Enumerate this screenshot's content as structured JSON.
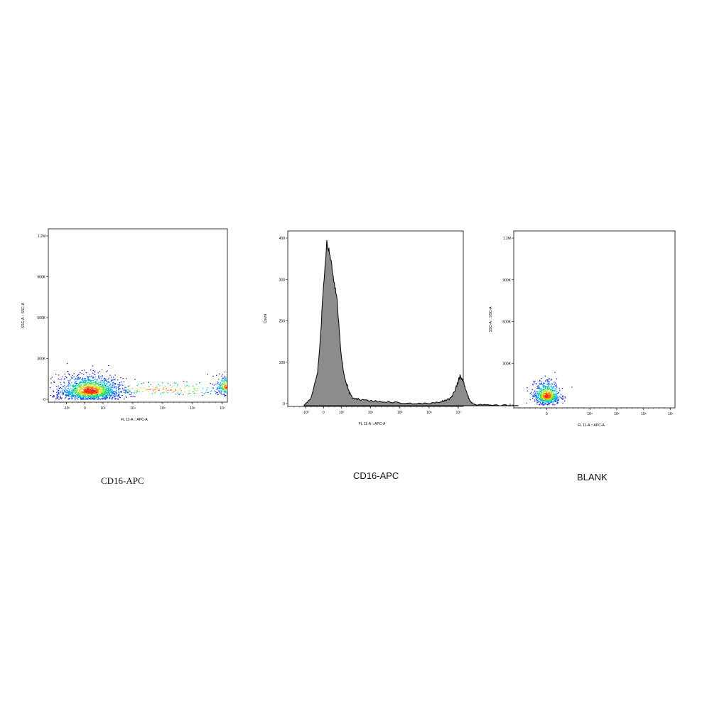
{
  "chart_data": [
    {
      "type": "scatter",
      "title": "",
      "xlabel": "FL 11-A :: APC-A",
      "ylabel": "SSC-A :: SSC-A",
      "x_ticks": [
        "-10²",
        "0",
        "10²",
        "10⁴",
        "10⁵",
        "10⁶",
        "10⁷"
      ],
      "y_ticks": [
        "0",
        "300K",
        "600K",
        "900K",
        "1.2M"
      ],
      "ylim": [
        0,
        1200000
      ],
      "grid": false,
      "populations": [
        {
          "name": "",
          "x_center_decades": 0.15,
          "x_spread": 0.45,
          "y_center": 60000,
          "y_spread": 45000,
          "count": 1600
        },
        {
          "name": "",
          "x_center_decades": 4.3,
          "x_spread": 0.18,
          "y_center": 90000,
          "y_spread": 35000,
          "count": 320
        },
        {
          "name": "",
          "x_center_decades": 2.4,
          "x_spread": 1.1,
          "y_center": 70000,
          "y_spread": 25000,
          "count": 160
        }
      ],
      "density_colormap": [
        "#0000c8",
        "#00a0ff",
        "#00e070",
        "#e8e800",
        "#ff2000"
      ],
      "caption": "CD16-APC"
    },
    {
      "type": "area",
      "title": "",
      "xlabel": "FL 11-A :: APC-A",
      "ylabel": "Count",
      "x_ticks": [
        "-10²",
        "0",
        "10²",
        "10⁴",
        "10⁵",
        "10⁶",
        "10⁷"
      ],
      "y_ticks": [
        "0",
        "100",
        "200",
        "300",
        "400"
      ],
      "ylim": [
        0,
        400
      ],
      "grid": false,
      "fill_color": "#8c8c8c",
      "x_decades": [
        -0.6,
        -0.4,
        -0.2,
        -0.1,
        0.0,
        0.1,
        0.2,
        0.3,
        0.4,
        0.5,
        0.6,
        0.7,
        0.8,
        0.9,
        1.1,
        1.4,
        1.8,
        2.2,
        2.6,
        3.0,
        3.3,
        3.5,
        3.7,
        3.9,
        4.0,
        4.1,
        4.2,
        4.3,
        4.4,
        4.5,
        4.6,
        4.7,
        4.9,
        5.2,
        5.6,
        6.0
      ],
      "counts": [
        2,
        15,
        70,
        160,
        290,
        395,
        365,
        310,
        270,
        160,
        90,
        55,
        30,
        20,
        15,
        12,
        10,
        8,
        6,
        5,
        6,
        8,
        12,
        18,
        30,
        50,
        70,
        58,
        35,
        12,
        5,
        3,
        2,
        1,
        1,
        0
      ],
      "caption": "CD16-APC"
    },
    {
      "type": "scatter",
      "title": "",
      "xlabel": "FL 11-A :: APC-A",
      "ylabel": "SSC-A :: SSC-A",
      "x_ticks": [
        "0",
        "10⁴",
        "10⁵",
        "10⁶",
        "10⁷"
      ],
      "y_ticks": [
        "0",
        "300K",
        "600K",
        "900K",
        "1.2M"
      ],
      "ylim": [
        0,
        1200000
      ],
      "grid": false,
      "populations": [
        {
          "name": "",
          "x_center_decades": 0.0,
          "x_spread": 0.22,
          "y_center": 65000,
          "y_spread": 40000,
          "count": 700
        }
      ],
      "density_colormap": [
        "#0000c8",
        "#00a0ff",
        "#00e070",
        "#e8e800",
        "#ff2000"
      ],
      "caption": "BLANK"
    }
  ]
}
